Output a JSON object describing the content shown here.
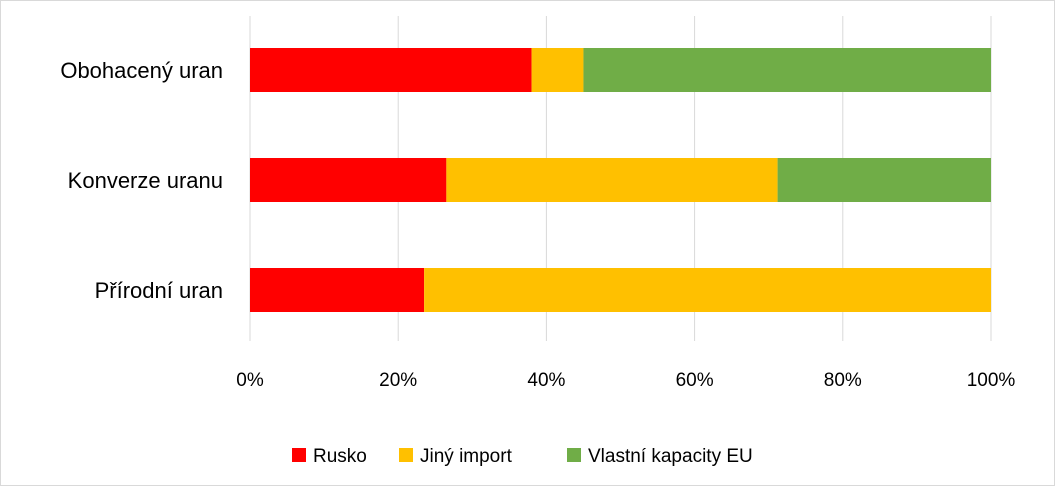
{
  "chart_data": {
    "type": "bar",
    "orientation": "horizontal",
    "stacked": "percent",
    "categories": [
      "Obohacený uran",
      "Konverze uranu",
      "Přírodní uran"
    ],
    "series": [
      {
        "name": "Rusko",
        "color": "#ff0000",
        "values": [
          38,
          26.5,
          23.5
        ]
      },
      {
        "name": "Jiný import",
        "color": "#ffc000",
        "values": [
          7,
          44.7,
          76.5
        ]
      },
      {
        "name": "Vlastní kapacity EU",
        "color": "#70ad47",
        "values": [
          55,
          28.8,
          0
        ]
      }
    ],
    "x_ticks": [
      "0%",
      "20%",
      "40%",
      "60%",
      "80%",
      "100%"
    ],
    "xlim": [
      0,
      100
    ],
    "grid": "vertical",
    "legend_position": "bottom"
  }
}
